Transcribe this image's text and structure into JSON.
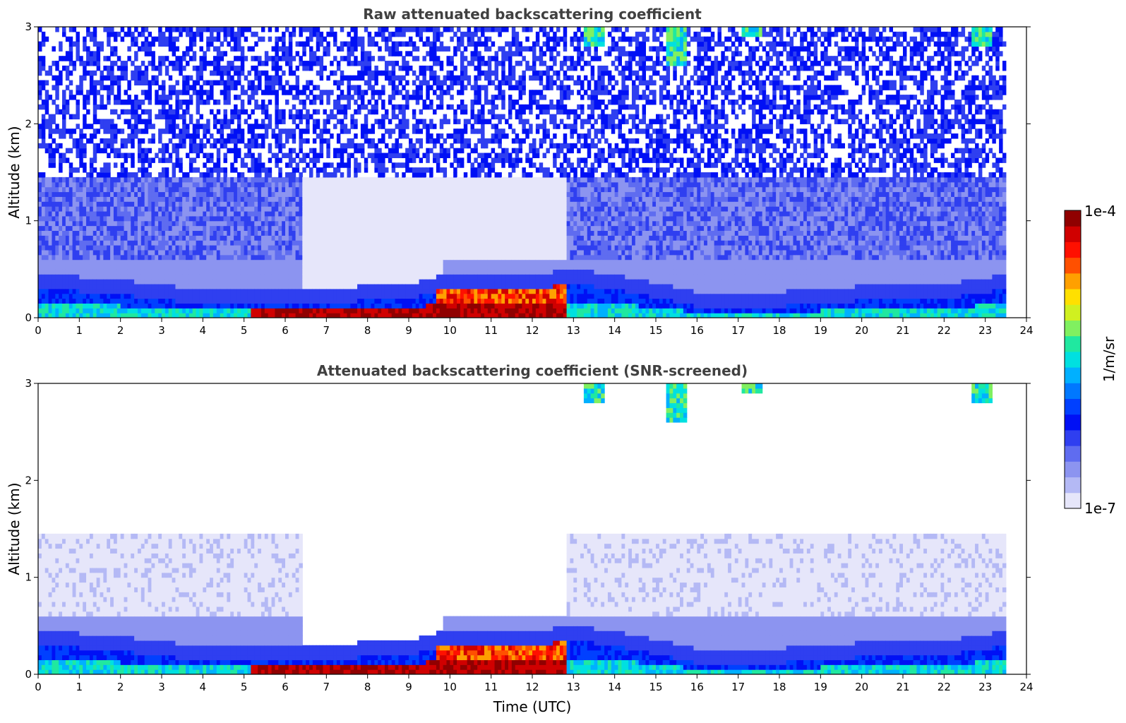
{
  "chart_data": [
    {
      "type": "heatmap",
      "title": "Raw attenuated backscattering coefficient",
      "xlabel": "",
      "ylabel": "Altitude (km)",
      "xlim": [
        0,
        24
      ],
      "ylim": [
        0,
        3
      ],
      "xticks": [
        "0",
        "1",
        "2",
        "3",
        "4",
        "5",
        "6",
        "7",
        "8",
        "9",
        "10",
        "11",
        "12",
        "13",
        "14",
        "15",
        "16",
        "17",
        "18",
        "19",
        "20",
        "21",
        "22",
        "23",
        "24"
      ],
      "yticks": [
        "0",
        "1",
        "2",
        "3"
      ],
      "data_coverage_x": [
        0,
        23.5
      ],
      "features": [
        {
          "label": "boundary layer top (km)",
          "x": [
            0,
            2,
            3,
            5,
            7,
            9,
            10,
            12,
            13,
            14,
            16,
            18,
            20,
            22,
            23.5
          ],
          "y": [
            0.3,
            0.25,
            0.18,
            0.15,
            0.16,
            0.2,
            0.32,
            0.3,
            0.35,
            0.3,
            0.12,
            0.12,
            0.18,
            0.2,
            0.3
          ]
        },
        {
          "label": "strong aerosol layer (dark red)",
          "x_range": [
            5.2,
            12.8
          ],
          "y_range": [
            0,
            0.35
          ]
        },
        {
          "label": "cirrus patches",
          "x": [
            13.5,
            15.5,
            17.3,
            22.9
          ],
          "y_top": [
            3,
            3,
            3,
            3
          ],
          "y_bottom": [
            2.8,
            2.6,
            2.9,
            2.8
          ]
        }
      ]
    },
    {
      "type": "heatmap",
      "title": "Attenuated backscattering coefficient (SNR-screened)",
      "xlabel": "Time (UTC)",
      "ylabel": "Altitude (km)",
      "xlim": [
        0,
        24
      ],
      "ylim": [
        0,
        3
      ],
      "xticks": [
        "0",
        "1",
        "2",
        "3",
        "4",
        "5",
        "6",
        "7",
        "8",
        "9",
        "10",
        "11",
        "12",
        "13",
        "14",
        "15",
        "16",
        "17",
        "18",
        "19",
        "20",
        "21",
        "22",
        "23",
        "24"
      ],
      "yticks": [
        "0",
        "1",
        "2",
        "3"
      ],
      "data_coverage_x": [
        0,
        23.5
      ],
      "screened_top_km": 1.45
    }
  ],
  "colorbar": {
    "label": "1/m/sr",
    "min_label": "1e-7",
    "max_label": "1e-4",
    "colors": [
      "#e6e6fa",
      "#b4b9f5",
      "#8c94f0",
      "#5f6cf0",
      "#2f3ff0",
      "#0010f5",
      "#0040ff",
      "#0078ff",
      "#00b0ff",
      "#00e0e0",
      "#20e8a0",
      "#80f060",
      "#d0f020",
      "#ffe000",
      "#ffa000",
      "#ff5000",
      "#ff1000",
      "#d00000",
      "#900000"
    ]
  }
}
